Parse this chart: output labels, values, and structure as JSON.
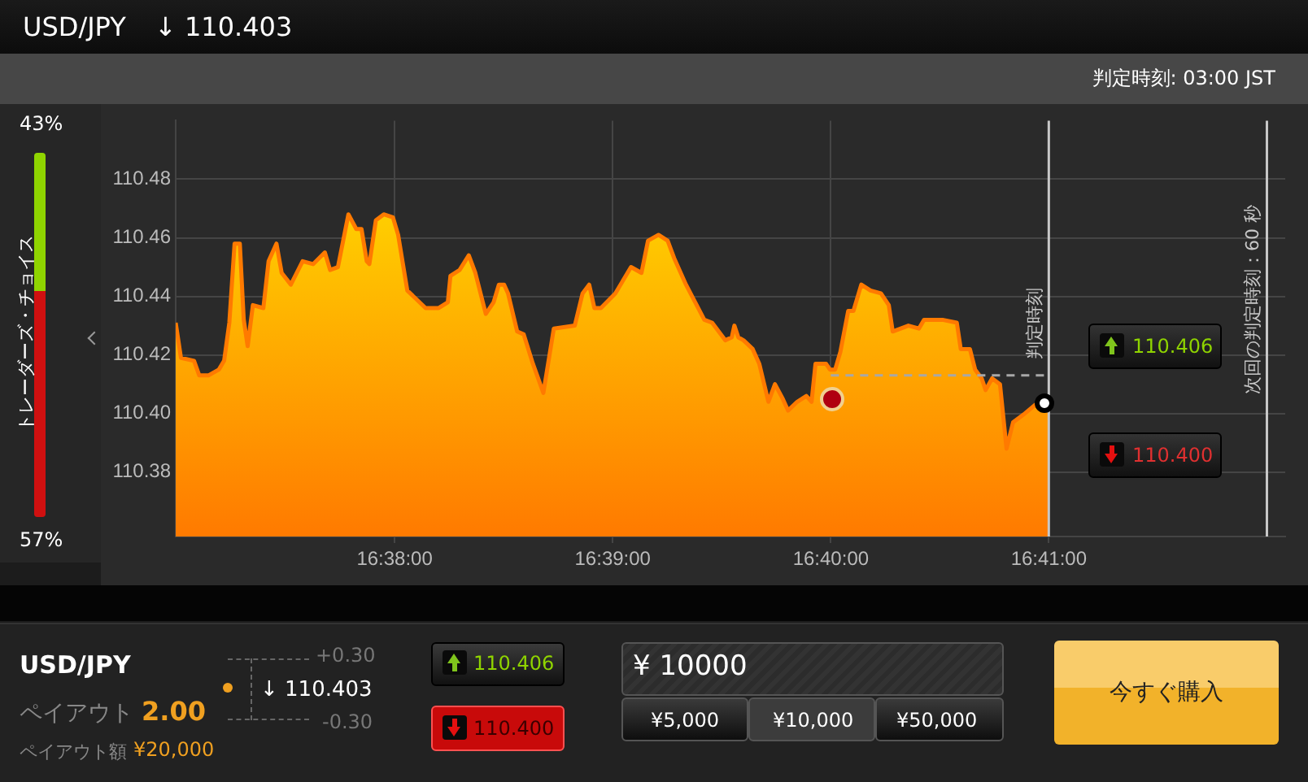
{
  "chart_data": {
    "type": "area",
    "xlim": [
      16.6166,
      16.7014
    ],
    "ylim": [
      110.358,
      110.5
    ],
    "xticks": [
      {
        "value": 16.63333,
        "label": "16:38:00"
      },
      {
        "value": 16.65,
        "label": "16:39:00"
      },
      {
        "value": 16.66667,
        "label": "16:40:00"
      },
      {
        "value": 16.68333,
        "label": "16:41:00"
      }
    ],
    "yticks": [
      110.38,
      {
        "value": 110.4,
        "label": "110.40"
      },
      110.42,
      110.44,
      110.46,
      110.48
    ],
    "grid": true,
    "legend": false,
    "series": [
      {
        "color": "#ff7a00",
        "marker": "none",
        "x": [
          16.6166,
          16.617,
          16.618,
          16.6184,
          16.6191,
          16.6199,
          16.6203,
          16.6207,
          16.6211,
          16.6215,
          16.6218,
          16.6221,
          16.6225,
          16.6233,
          16.6237,
          16.6243,
          16.6247,
          16.6254,
          16.6263,
          16.6271,
          16.628,
          16.6284,
          16.629,
          16.6298,
          16.6304,
          16.6308,
          16.6312,
          16.6314,
          16.6319,
          16.6325,
          16.6332,
          16.6336,
          16.6343,
          16.6357,
          16.6367,
          16.6374,
          16.6376,
          16.6383,
          16.639,
          16.6395,
          16.6403,
          16.6409,
          16.6413,
          16.6417,
          16.642,
          16.6427,
          16.6432,
          16.6439,
          16.6447,
          16.6455,
          16.6471,
          16.6477,
          16.6482,
          16.6486,
          16.6491,
          16.6502,
          16.6514,
          16.6522,
          16.6527,
          16.6535,
          16.6542,
          16.6547,
          16.6556,
          16.657,
          16.6576,
          16.6586,
          16.6591,
          16.6593,
          16.6596,
          16.66,
          16.6607,
          16.6612,
          16.6619,
          16.6624,
          16.663,
          16.6634,
          16.6641,
          16.6648,
          16.6652,
          16.6655,
          16.6663,
          16.6666,
          16.667,
          16.6674,
          16.668,
          16.6684,
          16.669,
          16.6697,
          16.6705,
          16.6711,
          16.6714,
          16.6726,
          16.6734,
          16.6738,
          16.6752,
          16.6763,
          16.6766,
          16.6773,
          16.6777,
          16.6782,
          16.6785,
          16.679,
          16.6796,
          16.6801,
          16.6806,
          16.6815,
          16.6823,
          16.6833
        ],
        "values": [
          110.431,
          110.419,
          110.418,
          110.413,
          110.413,
          110.415,
          110.418,
          110.431,
          110.458,
          110.458,
          110.432,
          110.423,
          110.437,
          110.436,
          110.452,
          110.458,
          110.448,
          110.444,
          110.452,
          110.451,
          110.455,
          110.449,
          110.45,
          110.468,
          110.463,
          110.463,
          110.452,
          110.451,
          110.466,
          110.468,
          110.467,
          110.461,
          110.442,
          110.436,
          110.436,
          110.438,
          110.447,
          110.449,
          110.454,
          110.448,
          110.434,
          110.438,
          110.444,
          110.444,
          110.441,
          110.428,
          110.427,
          110.417,
          110.407,
          110.429,
          110.43,
          110.441,
          110.444,
          110.436,
          110.436,
          110.441,
          110.45,
          110.448,
          110.459,
          110.461,
          110.459,
          110.453,
          110.444,
          110.432,
          110.431,
          110.425,
          110.426,
          110.43,
          110.426,
          110.425,
          110.422,
          110.417,
          110.404,
          110.41,
          110.405,
          110.401,
          110.404,
          110.406,
          110.404,
          110.417,
          110.417,
          110.415,
          110.415,
          110.421,
          110.435,
          110.435,
          110.444,
          110.442,
          110.441,
          110.437,
          110.428,
          110.43,
          110.429,
          110.432,
          110.432,
          110.431,
          110.422,
          110.422,
          110.415,
          110.412,
          110.408,
          110.412,
          110.41,
          110.388,
          110.397,
          110.4,
          110.403,
          110.403
        ]
      },
      {
        "type": "line",
        "color": "#a8a8a8",
        "line_style": "dashed",
        "marker": "none",
        "x": [
          16.66667,
          16.68333
        ],
        "values": [
          110.413,
          110.413
        ]
      }
    ],
    "ref_lines": [
      {
        "axis": "x",
        "value": 16.68333,
        "label": "判定時刻",
        "color": "#c8c8c8"
      },
      {
        "axis": "x",
        "value": 16.7,
        "label": "次回の判定時刻：60 秒",
        "color": "#c8c8c8"
      }
    ],
    "annotations": [
      "USD/JPY",
      "↓ 110.403",
      "判定時刻:  03:00 JST",
      "43%",
      "57%",
      "トレーダーズ・チョイス",
      "110.406",
      "110.400",
      "USD/JPY",
      "ペイアウト",
      "2.00",
      "ペイアウト額",
      "¥20,000",
      "+0.30",
      "↓ 110.403",
      "-0.30",
      "110.406",
      "110.400",
      "¥ 10000",
      "¥5,000",
      "¥10,000",
      "¥50,000",
      "今すぐ購入"
    ]
  }
}
